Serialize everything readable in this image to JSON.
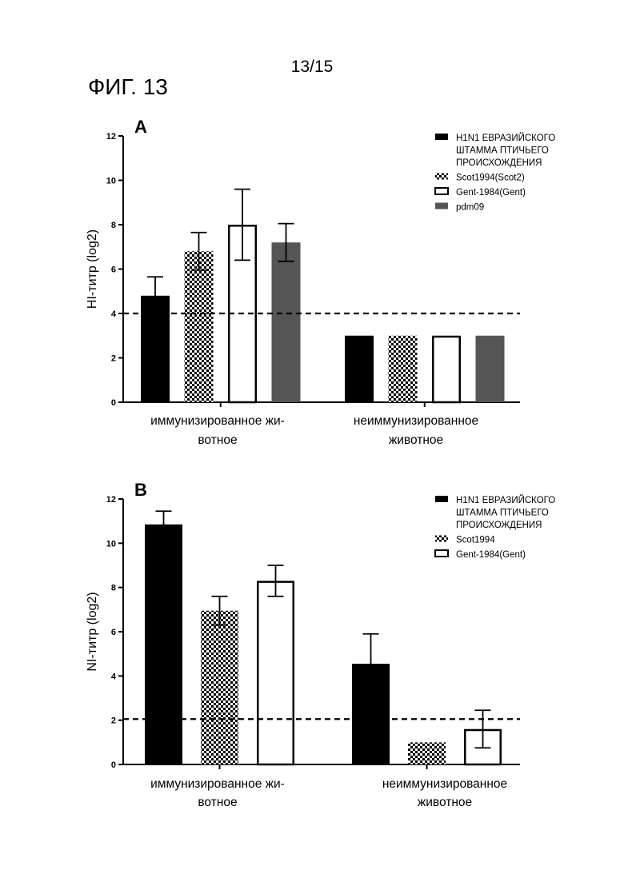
{
  "header": {
    "page_number": "13/15",
    "figure_title": "ФИГ. 13"
  },
  "chart_data": [
    {
      "type": "bar",
      "panel": "A",
      "ylabel": "HI-титр (log2)",
      "xlabel": "",
      "ylim": [
        0,
        12
      ],
      "yticks": [
        0,
        2,
        4,
        6,
        8,
        10,
        12
      ],
      "categories": [
        [
          "иммунизированное жи-",
          "вотное"
        ],
        [
          "неиммунизированное",
          "животное"
        ]
      ],
      "series": [
        {
          "name": [
            "H1N1 ЕВРАЗИЙСКОГО",
            "ШТАММА ПТИЧЬЕГО",
            "ПРОИСХОЖДЕНИЯ"
          ],
          "style": "black",
          "values": [
            4.8,
            3.0
          ],
          "errors": [
            0.85,
            null
          ]
        },
        {
          "name": [
            "Scot1994(Scot2)"
          ],
          "style": "checker",
          "values": [
            6.8,
            3.0
          ],
          "errors": [
            0.85,
            null
          ]
        },
        {
          "name": [
            "Gent-1984(Gent)"
          ],
          "style": "white",
          "values": [
            8.0,
            3.0
          ],
          "errors": [
            1.6,
            null
          ]
        },
        {
          "name": [
            "pdm09"
          ],
          "style": "gray",
          "values": [
            7.2,
            3.0
          ],
          "errors": [
            0.85,
            null
          ]
        }
      ],
      "threshold": 4,
      "legend_position": "top-right",
      "colors": {
        "black": "#000000",
        "gray": "#555555",
        "white": "#ffffff"
      }
    },
    {
      "type": "bar",
      "panel": "B",
      "ylabel": "NI-титр (log2)",
      "xlabel": "",
      "ylim": [
        0,
        12
      ],
      "yticks": [
        0,
        2,
        4,
        6,
        8,
        10,
        12
      ],
      "categories": [
        [
          "иммунизированное жи-",
          "вотное"
        ],
        [
          "неиммунизированное",
          "животное"
        ]
      ],
      "series": [
        {
          "name": [
            "H1N1 ЕВРАЗИЙСКОГО",
            "ШТАММА ПТИЧЬЕГО",
            "ПРОИСХОЖДЕНИЯ"
          ],
          "style": "black",
          "values": [
            10.85,
            4.55
          ],
          "errors": [
            0.6,
            1.35
          ]
        },
        {
          "name": [
            "Scot1994"
          ],
          "style": "checker",
          "values": [
            6.95,
            1.0
          ],
          "errors": [
            0.65,
            null
          ]
        },
        {
          "name": [
            "Gent-1984(Gent)"
          ],
          "style": "white",
          "values": [
            8.3,
            1.6
          ],
          "errors": [
            0.7,
            0.85
          ]
        }
      ],
      "threshold": 2.05,
      "legend_position": "top-right",
      "colors": {
        "black": "#000000",
        "white": "#ffffff"
      }
    }
  ]
}
